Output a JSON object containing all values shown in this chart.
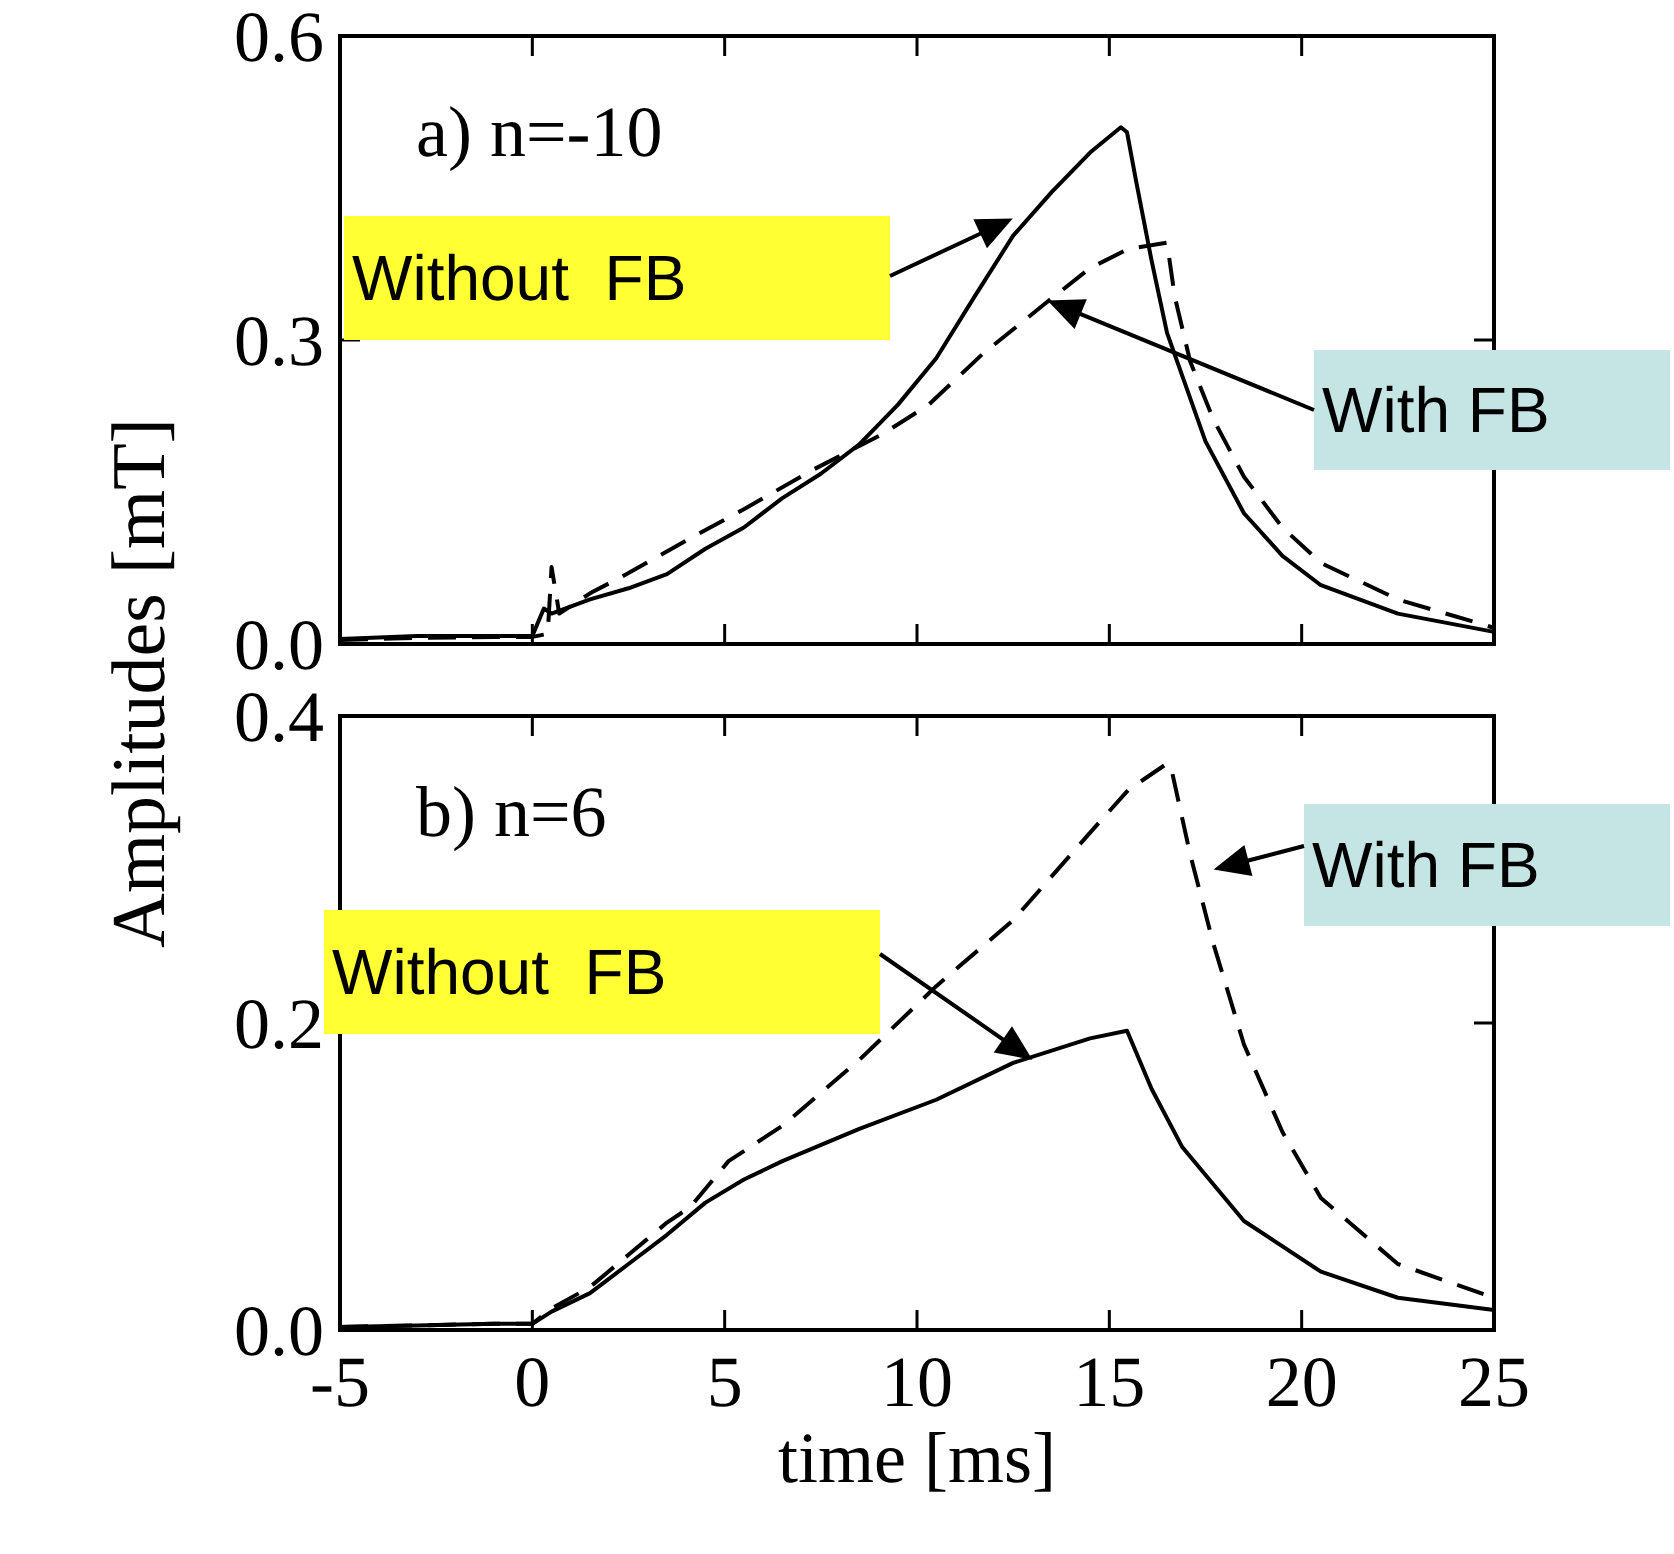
{
  "chart_data": [
    {
      "type": "line",
      "ylabel": "Amplitudes [mT]",
      "xlim": [
        -5,
        25
      ],
      "ylim": [
        0,
        0.6
      ],
      "xticks": [
        {
          "value": -5,
          "label": null
        },
        {
          "value": 0,
          "label": null
        },
        {
          "value": 5,
          "label": null
        },
        {
          "value": 10,
          "label": null
        },
        {
          "value": 15,
          "label": null
        },
        {
          "value": 20,
          "label": null
        },
        {
          "value": 25,
          "label": null
        }
      ],
      "yticks": [
        {
          "value": 0,
          "label": "0.0"
        },
        {
          "value": 0.3,
          "label": "0.3"
        },
        {
          "value": 0.6,
          "label": "0.6"
        }
      ],
      "tick_labels": "y",
      "grid": false,
      "series": [
        {
          "color": "#000000",
          "line_style": "solid",
          "x": [
            -5,
            -3,
            -1,
            0,
            0.3,
            0.5,
            1.5,
            2.5,
            3.5,
            4.5,
            5.5,
            6.5,
            7.5,
            8.5,
            9.5,
            10.5,
            11.5,
            12.5,
            13.5,
            14.5,
            15.3,
            15.46,
            15.7,
            16.1,
            16.5,
            17.5,
            18.5,
            19.5,
            20.5,
            22.5,
            25
          ],
          "values": [
            0.005,
            0.008,
            0.008,
            0.008,
            0.035,
            0.03,
            0.044,
            0.055,
            0.069,
            0.094,
            0.115,
            0.144,
            0.168,
            0.197,
            0.236,
            0.282,
            0.343,
            0.403,
            0.446,
            0.485,
            0.51,
            0.505,
            0.456,
            0.378,
            0.307,
            0.2,
            0.129,
            0.087,
            0.058,
            0.03,
            0.012
          ]
        },
        {
          "color": "#000000",
          "line_style": "dashed",
          "x": [
            -5,
            -3,
            -1,
            0,
            0.4,
            0.5,
            0.7,
            1.5,
            2.5,
            3.9,
            5.5,
            7.3,
            9.1,
            10.3,
            11.7,
            13.3,
            14.5,
            15.5,
            16.5,
            16.7,
            17.1,
            17.7,
            18.5,
            19.5,
            20.5,
            22.5,
            25
          ],
          "values": [
            0.004,
            0.006,
            0.007,
            0.007,
            0.01,
            0.076,
            0.03,
            0.05,
            0.07,
            0.1,
            0.133,
            0.172,
            0.207,
            0.236,
            0.286,
            0.335,
            0.371,
            0.39,
            0.396,
            0.343,
            0.279,
            0.222,
            0.165,
            0.115,
            0.08,
            0.044,
            0.016
          ]
        }
      ],
      "annotations": [
        "a) n=-10",
        "Without  FB",
        "With FB"
      ]
    },
    {
      "type": "line",
      "xlabel": "time [ms]",
      "xlim": [
        -5,
        25
      ],
      "ylim": [
        0,
        0.4
      ],
      "xticks": [
        -5,
        0,
        5,
        10,
        15,
        20,
        25
      ],
      "yticks": [
        {
          "value": 0,
          "label": "0.0"
        },
        {
          "value": 0.2,
          "label": "0.2"
        },
        {
          "value": 0.4,
          "label": "0.4"
        }
      ],
      "grid": false,
      "series": [
        {
          "color": "#000000",
          "line_style": "solid",
          "x": [
            -5,
            -3,
            -1,
            0,
            0.5,
            1.5,
            2.5,
            3.5,
            4.5,
            5.5,
            6.5,
            8.5,
            10.5,
            12.5,
            14.5,
            15.46,
            16.1,
            16.9,
            18.5,
            20.5,
            22.5,
            25
          ],
          "values": [
            0.002,
            0.003,
            0.004,
            0.004,
            0.012,
            0.024,
            0.043,
            0.062,
            0.083,
            0.098,
            0.11,
            0.131,
            0.15,
            0.174,
            0.19,
            0.195,
            0.157,
            0.119,
            0.071,
            0.038,
            0.021,
            0.013
          ]
        },
        {
          "color": "#000000",
          "line_style": "dashed",
          "x": [
            -5,
            -3,
            -1,
            0,
            0.5,
            1.5,
            2.5,
            3.5,
            4.1,
            5.1,
            6.5,
            8.5,
            10.5,
            12.5,
            14.5,
            15.5,
            16.5,
            16.6,
            17.1,
            17.7,
            18.5,
            19.5,
            20.5,
            22.5,
            25
          ],
          "values": [
            0.002,
            0.003,
            0.004,
            0.004,
            0.014,
            0.028,
            0.049,
            0.07,
            0.08,
            0.11,
            0.133,
            0.176,
            0.224,
            0.267,
            0.324,
            0.352,
            0.369,
            0.367,
            0.31,
            0.252,
            0.186,
            0.129,
            0.086,
            0.043,
            0.021
          ]
        }
      ],
      "annotations": [
        "b) n=6",
        "Without  FB",
        "With FB"
      ]
    }
  ]
}
